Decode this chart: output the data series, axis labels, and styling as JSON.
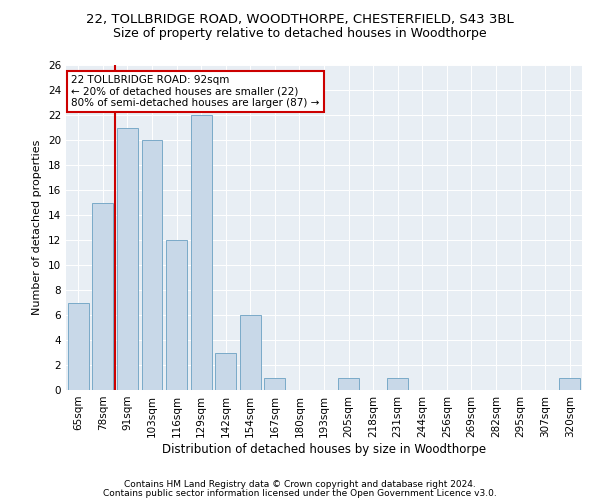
{
  "title1": "22, TOLLBRIDGE ROAD, WOODTHORPE, CHESTERFIELD, S43 3BL",
  "title2": "Size of property relative to detached houses in Woodthorpe",
  "xlabel": "Distribution of detached houses by size in Woodthorpe",
  "ylabel": "Number of detached properties",
  "categories": [
    "65sqm",
    "78sqm",
    "91sqm",
    "103sqm",
    "116sqm",
    "129sqm",
    "142sqm",
    "154sqm",
    "167sqm",
    "180sqm",
    "193sqm",
    "205sqm",
    "218sqm",
    "231sqm",
    "244sqm",
    "256sqm",
    "269sqm",
    "282sqm",
    "295sqm",
    "307sqm",
    "320sqm"
  ],
  "values": [
    7,
    15,
    21,
    20,
    12,
    22,
    3,
    6,
    1,
    0,
    0,
    1,
    0,
    1,
    0,
    0,
    0,
    0,
    0,
    0,
    1
  ],
  "bar_color": "#c8d8e8",
  "bar_edge_color": "#7aaac8",
  "vline_x": 1.5,
  "vline_color": "#cc0000",
  "annotation_line1": "22 TOLLBRIDGE ROAD: 92sqm",
  "annotation_line2": "← 20% of detached houses are smaller (22)",
  "annotation_line3": "80% of semi-detached houses are larger (87) →",
  "annotation_box_facecolor": "#ffffff",
  "annotation_border_color": "#cc0000",
  "ylim": [
    0,
    26
  ],
  "yticks": [
    0,
    2,
    4,
    6,
    8,
    10,
    12,
    14,
    16,
    18,
    20,
    22,
    24,
    26
  ],
  "background_color": "#e8eef4",
  "footer1": "Contains HM Land Registry data © Crown copyright and database right 2024.",
  "footer2": "Contains public sector information licensed under the Open Government Licence v3.0.",
  "title1_fontsize": 9.5,
  "title2_fontsize": 9,
  "xlabel_fontsize": 8.5,
  "ylabel_fontsize": 8,
  "tick_fontsize": 7.5,
  "annotation_fontsize": 7.5,
  "footer_fontsize": 6.5
}
